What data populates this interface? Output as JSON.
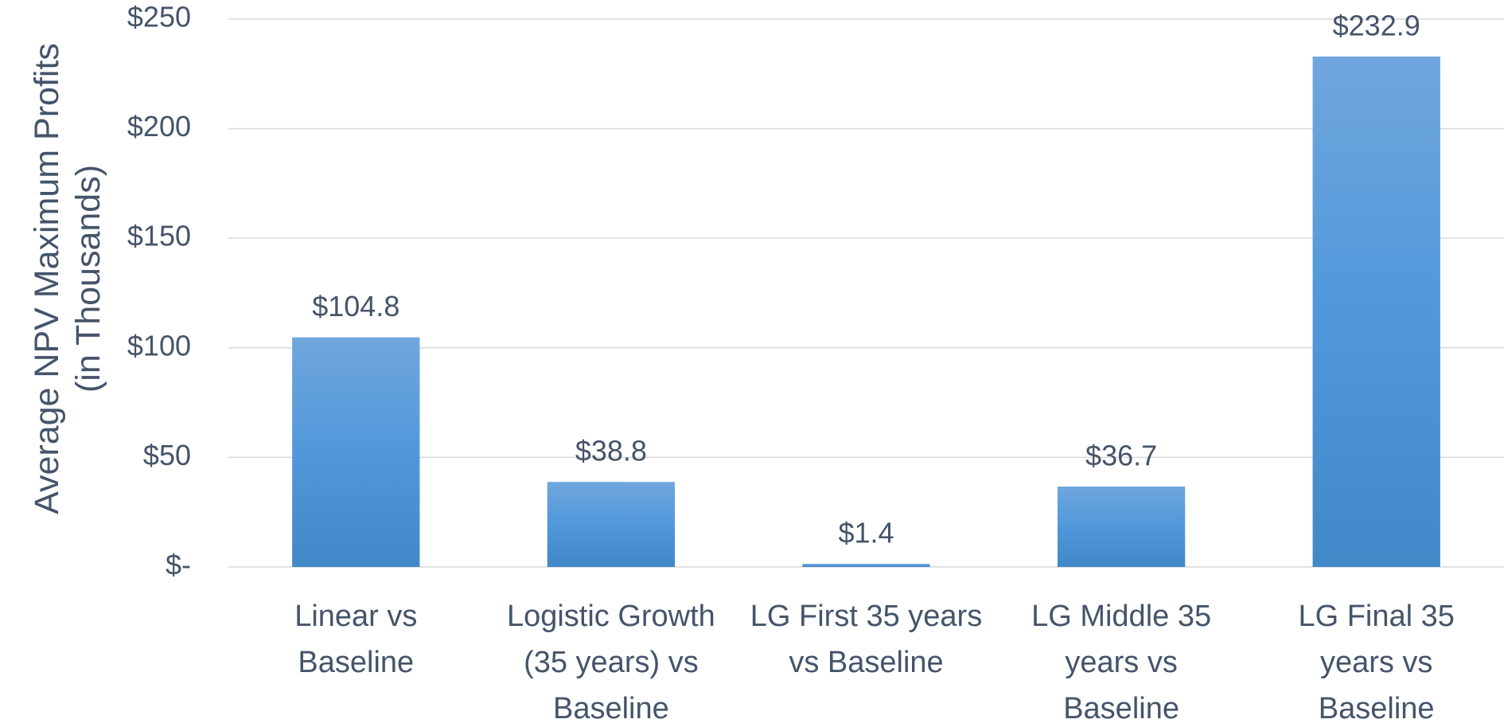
{
  "chart_data": {
    "type": "bar",
    "y_axis_label": "Average NPV Maximum Profits\n(in Thousands)",
    "categories": [
      "Linear vs\nBaseline",
      "Logistic Growth\n(35 years) vs\nBaseline",
      "LG First 35 years\nvs Baseline",
      "LG Middle 35\nyears vs\nBaseline",
      "LG Final 35\nyears vs\nBaseline"
    ],
    "values": [
      104.8,
      38.8,
      1.4,
      36.7,
      232.9
    ],
    "value_labels": [
      "$104.8",
      "$38.8",
      "$1.4",
      "$36.7",
      "$232.9"
    ],
    "color": "#5b9bd5",
    "ylim": [
      0,
      250
    ],
    "yticks": [
      {
        "value": 0,
        "label": "$-"
      },
      {
        "value": 50,
        "label": "$50"
      },
      {
        "value": 100,
        "label": "$100"
      },
      {
        "value": 150,
        "label": "$150"
      },
      {
        "value": 200,
        "label": "$200"
      },
      {
        "value": 250,
        "label": "$250"
      }
    ],
    "grid": true
  }
}
